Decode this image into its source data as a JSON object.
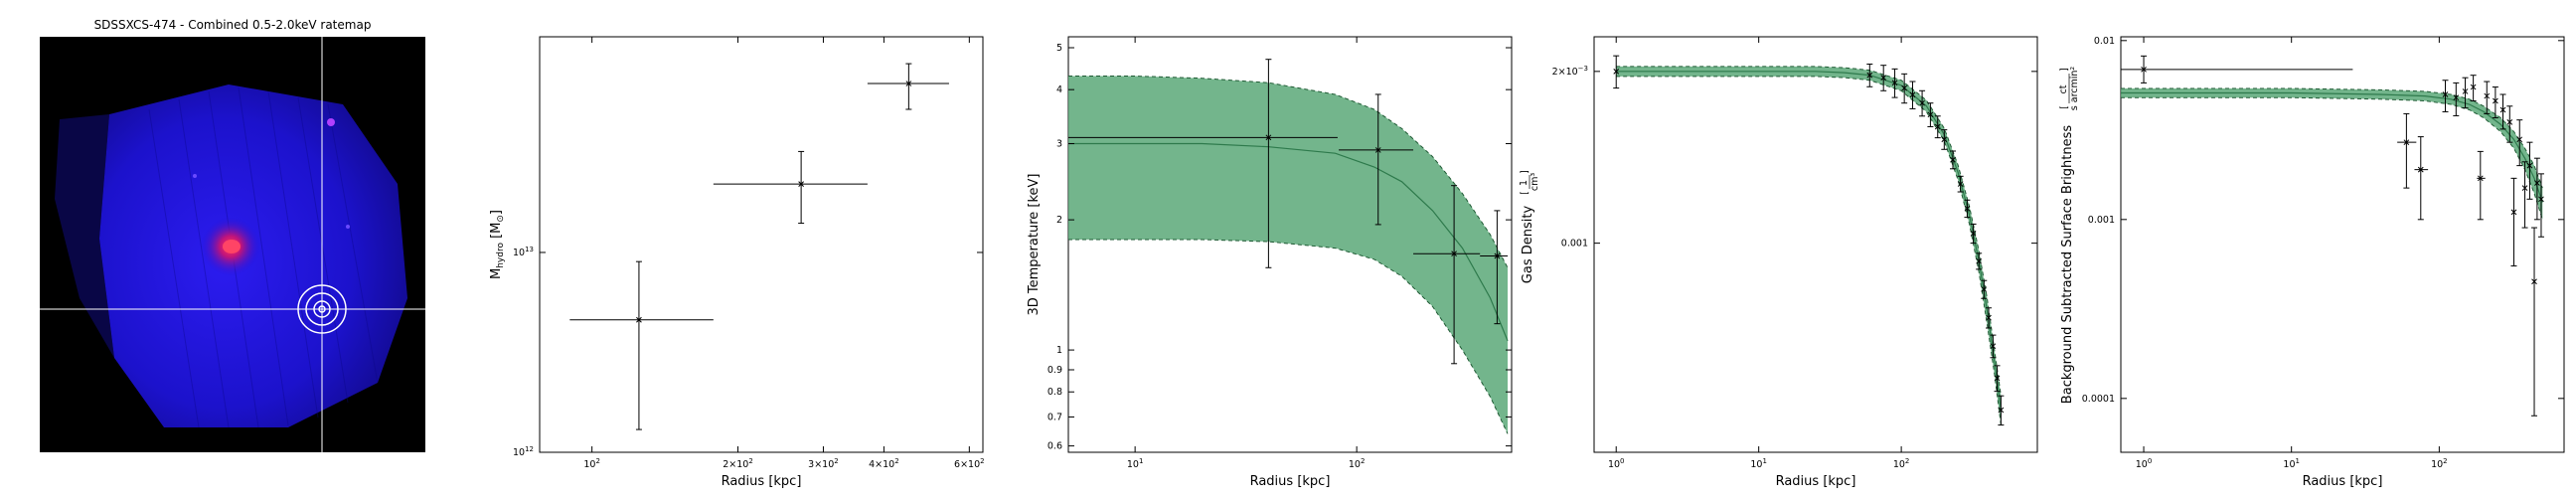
{
  "image_panel": {
    "title": "SDSSXCS-474 - Combined 0.5-2.0keV ratemap",
    "colors": {
      "background": "#000000",
      "field": "#1a10d8",
      "core": "#ff3355",
      "crosshair": "#ffffff"
    }
  },
  "chart_data": [
    {
      "type": "scatter",
      "xlabel": "Radius [kpc]",
      "ylabel": "M_hydro [M_sun]",
      "ylabel_parts": {
        "main": "M",
        "sub": "hydro",
        "unit_open": " [M",
        "unit_sub": "⊙",
        "unit_close": "]"
      },
      "xscale": "log",
      "yscale": "log",
      "xlim": [
        78,
        640
      ],
      "ylim": [
        1000000000000.0,
        120000000000000.0
      ],
      "xticks": [
        {
          "v": 100,
          "b": "10",
          "e": "2"
        },
        {
          "v": 200,
          "b": "2×10",
          "e": "2"
        },
        {
          "v": 300,
          "b": "3×10",
          "e": "2"
        },
        {
          "v": 400,
          "b": "4×10",
          "e": "2"
        },
        {
          "v": 600,
          "b": "6×10",
          "e": "2"
        }
      ],
      "yticks": [
        {
          "v": 1000000000000.0,
          "b": "10",
          "e": "12"
        },
        {
          "v": 10000000000000.0,
          "b": "10",
          "e": "13"
        }
      ],
      "points": [
        {
          "x": 125,
          "y": 4600000000000.0,
          "xerr": [
            90,
            178
          ],
          "yerr": [
            1300000000000.0,
            9000000000000.0
          ]
        },
        {
          "x": 270,
          "y": 22000000000000.0,
          "xerr": [
            178,
            370
          ],
          "yerr": [
            14000000000000.0,
            32000000000000.0
          ]
        },
        {
          "x": 450,
          "y": 70000000000000.0,
          "xerr": [
            370,
            545
          ],
          "yerr": [
            52000000000000.0,
            88000000000000.0
          ]
        }
      ],
      "colors": {
        "point": "#000000"
      }
    },
    {
      "type": "line",
      "xlabel": "Radius [kpc]",
      "ylabel": "3D Temperature [keV]",
      "xscale": "log",
      "yscale": "log",
      "xlim": [
        5,
        500
      ],
      "ylim": [
        0.58,
        5.3
      ],
      "xticks": [
        {
          "v": 10,
          "b": "10",
          "e": "1"
        },
        {
          "v": 100,
          "b": "10",
          "e": "2"
        }
      ],
      "yticks": [
        {
          "v": 0.6,
          "t": "0.6"
        },
        {
          "v": 0.7,
          "t": "0.7"
        },
        {
          "v": 0.8,
          "t": "0.8"
        },
        {
          "v": 0.9,
          "t": "0.9"
        },
        {
          "v": 1,
          "t": "1"
        },
        {
          "v": 2,
          "t": "2"
        },
        {
          "v": 3,
          "t": "3"
        },
        {
          "v": 4,
          "t": "4"
        },
        {
          "v": 5,
          "t": "5"
        }
      ],
      "band": {
        "x": [
          5,
          10,
          20,
          40,
          80,
          120,
          160,
          220,
          300,
          400,
          480
        ],
        "lower": [
          1.8,
          1.8,
          1.8,
          1.78,
          1.72,
          1.62,
          1.48,
          1.26,
          1.0,
          0.78,
          0.64
        ],
        "upper": [
          4.3,
          4.3,
          4.25,
          4.15,
          3.9,
          3.6,
          3.25,
          2.8,
          2.3,
          1.85,
          1.55
        ],
        "mid": [
          3.0,
          3.0,
          3.0,
          2.95,
          2.85,
          2.65,
          2.45,
          2.1,
          1.72,
          1.32,
          1.05
        ]
      },
      "points": [
        {
          "x": 40,
          "y": 3.1,
          "xerr": [
            5,
            82
          ],
          "yerr": [
            1.55,
            4.7
          ]
        },
        {
          "x": 125,
          "y": 2.9,
          "xerr": [
            83,
            180
          ],
          "yerr": [
            1.95,
            3.9
          ]
        },
        {
          "x": 275,
          "y": 1.67,
          "xerr": [
            180,
            360
          ],
          "yerr": [
            0.93,
            2.4
          ]
        },
        {
          "x": 430,
          "y": 1.65,
          "xerr": [
            360,
            480
          ],
          "yerr": [
            1.15,
            2.1
          ]
        }
      ],
      "colors": {
        "band": "#5aa878",
        "band_edge": "#1f5a34",
        "line": "#2e7a4c",
        "point": "#000000"
      }
    },
    {
      "type": "line",
      "xlabel": "Radius [kpc]",
      "ylabel": "Gas Density",
      "ylabel_unit": {
        "num": "1",
        "den": "cm³"
      },
      "xscale": "log",
      "yscale": "log",
      "xlim": [
        0.7,
        900
      ],
      "ylim": [
        0.00043,
        0.0023
      ],
      "xticks": [
        {
          "v": 1,
          "b": "10",
          "e": "0"
        },
        {
          "v": 10,
          "b": "10",
          "e": "1"
        },
        {
          "v": 100,
          "b": "10",
          "e": "2"
        }
      ],
      "yticks": [
        {
          "v": 0.001,
          "t": "0.001"
        },
        {
          "v": 0.002,
          "b": "2×10",
          "e": "−3"
        }
      ],
      "model": {
        "x": [
          1,
          3,
          10,
          25,
          40,
          60,
          100,
          150,
          200,
          250,
          300,
          350,
          400,
          450,
          500
        ],
        "mid": [
          0.002,
          0.002,
          0.002,
          0.002,
          0.00199,
          0.00197,
          0.00189,
          0.00174,
          0.00155,
          0.00133,
          0.00112,
          0.00093,
          0.00076,
          0.00062,
          0.00051
        ],
        "lower": [
          0.00196,
          0.00196,
          0.00196,
          0.00196,
          0.00195,
          0.00193,
          0.00185,
          0.0017,
          0.00151,
          0.00129,
          0.00108,
          0.00089,
          0.00072,
          0.00059,
          0.00048
        ],
        "upper": [
          0.00204,
          0.00204,
          0.00204,
          0.00204,
          0.00203,
          0.00201,
          0.00193,
          0.00178,
          0.00159,
          0.00137,
          0.00116,
          0.00097,
          0.0008,
          0.00065,
          0.00054
        ]
      },
      "points": [
        {
          "x": 1,
          "y": 0.002,
          "yerr": [
            0.00187,
            0.00213
          ]
        },
        {
          "x": 60,
          "y": 0.00197,
          "yerr": [
            0.00188,
            0.00206
          ]
        },
        {
          "x": 75,
          "y": 0.00195,
          "yerr": [
            0.00185,
            0.00205
          ]
        },
        {
          "x": 90,
          "y": 0.00191,
          "yerr": [
            0.0018,
            0.00202
          ]
        },
        {
          "x": 105,
          "y": 0.00187,
          "yerr": [
            0.00176,
            0.00198
          ]
        },
        {
          "x": 120,
          "y": 0.00182,
          "yerr": [
            0.00172,
            0.00192
          ]
        },
        {
          "x": 140,
          "y": 0.00176,
          "yerr": [
            0.00167,
            0.00185
          ]
        },
        {
          "x": 160,
          "y": 0.00168,
          "yerr": [
            0.0016,
            0.00176
          ]
        },
        {
          "x": 180,
          "y": 0.0016,
          "yerr": [
            0.00153,
            0.00167
          ]
        },
        {
          "x": 200,
          "y": 0.00152,
          "yerr": [
            0.00146,
            0.00158
          ]
        },
        {
          "x": 230,
          "y": 0.0014,
          "yerr": [
            0.00135,
            0.00145
          ]
        },
        {
          "x": 260,
          "y": 0.00127,
          "yerr": [
            0.00123,
            0.00131
          ]
        },
        {
          "x": 290,
          "y": 0.00115,
          "yerr": [
            0.00111,
            0.00119
          ]
        },
        {
          "x": 320,
          "y": 0.00104,
          "yerr": [
            0.001,
            0.00108
          ]
        },
        {
          "x": 350,
          "y": 0.00093,
          "yerr": [
            0.0009,
            0.00096
          ]
        },
        {
          "x": 380,
          "y": 0.00083,
          "yerr": [
            0.0008,
            0.00086
          ]
        },
        {
          "x": 410,
          "y": 0.00074,
          "yerr": [
            0.00071,
            0.00077
          ]
        },
        {
          "x": 440,
          "y": 0.00066,
          "yerr": [
            0.00063,
            0.00069
          ]
        },
        {
          "x": 470,
          "y": 0.00058,
          "yerr": [
            0.00055,
            0.00061
          ]
        },
        {
          "x": 500,
          "y": 0.00051,
          "yerr": [
            0.00048,
            0.00054
          ]
        }
      ],
      "colors": {
        "band": "#5aa878",
        "band_edge": "#1f5a34",
        "line": "#2e7a4c",
        "point": "#000000"
      }
    },
    {
      "type": "scatter",
      "xlabel": "Radius [kpc]",
      "ylabel": "Background Subtracted Surface Brightness",
      "ylabel_unit": {
        "num": "ct",
        "den": "s arcmin²"
      },
      "xscale": "log",
      "yscale": "log",
      "xlim": [
        0.7,
        700
      ],
      "ylim": [
        5e-05,
        0.0105
      ],
      "xticks": [
        {
          "v": 1,
          "b": "10",
          "e": "0"
        },
        {
          "v": 10,
          "b": "10",
          "e": "1"
        },
        {
          "v": 100,
          "b": "10",
          "e": "2"
        }
      ],
      "yticks": [
        {
          "v": 0.0001,
          "t": "0.0001"
        },
        {
          "v": 0.001,
          "t": "0.001"
        },
        {
          "v": 0.01,
          "t": "0.01"
        }
      ],
      "model": {
        "x": [
          0.7,
          3,
          10,
          40,
          80,
          120,
          160,
          200,
          260,
          320,
          380,
          440,
          500
        ],
        "mid": [
          0.0051,
          0.0051,
          0.0051,
          0.005,
          0.0049,
          0.0047,
          0.0044,
          0.004,
          0.0034,
          0.0028,
          0.0022,
          0.0017,
          0.00125
        ],
        "lower": [
          0.0048,
          0.0048,
          0.0048,
          0.0047,
          0.0046,
          0.0044,
          0.0041,
          0.0037,
          0.0031,
          0.0025,
          0.0019,
          0.0014,
          0.001
        ],
        "upper": [
          0.0054,
          0.0054,
          0.0054,
          0.0053,
          0.0052,
          0.005,
          0.0047,
          0.0043,
          0.0037,
          0.0031,
          0.0025,
          0.002,
          0.0015
        ]
      },
      "points": [
        {
          "x": 1,
          "y": 0.0069,
          "xerr": [
            0.7,
            26
          ],
          "yerr": [
            0.0058,
            0.0082
          ]
        },
        {
          "x": 60,
          "y": 0.0027,
          "xerr": [
            52,
            70
          ],
          "yerr": [
            0.0015,
            0.0039
          ]
        },
        {
          "x": 75,
          "y": 0.0019,
          "xerr": [
            68,
            84
          ],
          "yerr": [
            0.001,
            0.0029
          ]
        },
        {
          "x": 110,
          "y": 0.005,
          "yerr": [
            0.004,
            0.006
          ]
        },
        {
          "x": 130,
          "y": 0.0048,
          "yerr": [
            0.0038,
            0.0058
          ]
        },
        {
          "x": 150,
          "y": 0.0052,
          "yerr": [
            0.0042,
            0.0062
          ]
        },
        {
          "x": 170,
          "y": 0.0055,
          "yerr": [
            0.0046,
            0.0064
          ]
        },
        {
          "x": 190,
          "y": 0.0017,
          "xerr": [
            180,
            205
          ],
          "yerr": [
            0.001,
            0.0024
          ]
        },
        {
          "x": 210,
          "y": 0.0049,
          "yerr": [
            0.0039,
            0.0059
          ]
        },
        {
          "x": 240,
          "y": 0.0046,
          "yerr": [
            0.0037,
            0.0055
          ]
        },
        {
          "x": 270,
          "y": 0.0041,
          "yerr": [
            0.0032,
            0.005
          ]
        },
        {
          "x": 300,
          "y": 0.0035,
          "yerr": [
            0.0027,
            0.0043
          ]
        },
        {
          "x": 320,
          "y": 0.0011,
          "yerr": [
            0.00055,
            0.0017
          ]
        },
        {
          "x": 350,
          "y": 0.0028,
          "yerr": [
            0.002,
            0.0036
          ]
        },
        {
          "x": 380,
          "y": 0.0015,
          "yerr": [
            0.0009,
            0.0021
          ]
        },
        {
          "x": 410,
          "y": 0.002,
          "yerr": [
            0.0013,
            0.0027
          ]
        },
        {
          "x": 440,
          "y": 0.00045,
          "yerr": [
            8e-05,
            0.0009
          ]
        },
        {
          "x": 460,
          "y": 0.0016,
          "yerr": [
            0.001,
            0.0022
          ]
        },
        {
          "x": 490,
          "y": 0.0013,
          "yerr": [
            0.0008,
            0.0018
          ]
        }
      ],
      "colors": {
        "band": "#5aa878",
        "band_edge": "#1f5a34",
        "line": "#2e7a4c",
        "point": "#000000"
      }
    }
  ]
}
